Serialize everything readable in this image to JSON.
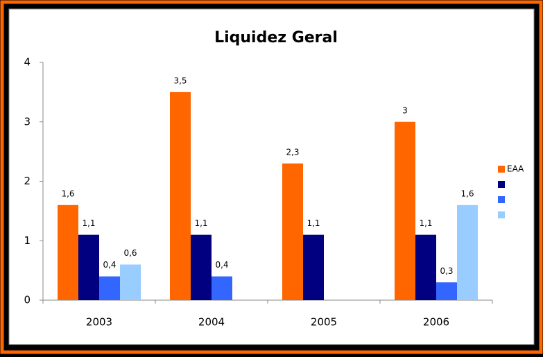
{
  "chart_data": {
    "type": "bar",
    "title": "Liquidez Geral",
    "categories": [
      "2003",
      "2004",
      "2005",
      "2006"
    ],
    "series": [
      {
        "name": "EAA",
        "color": "#ff6600",
        "values": [
          1.6,
          3.5,
          2.3,
          3
        ],
        "value_labels": [
          "1,6",
          "3,5",
          "2,3",
          "3"
        ]
      },
      {
        "color": "#000080",
        "values": [
          1.1,
          1.1,
          1.1,
          1.1
        ],
        "value_labels": [
          "1,1",
          "1,1",
          "1,1",
          "1,1"
        ]
      },
      {
        "color": "#3366ff",
        "values": [
          0.4,
          0.4,
          null,
          0.3
        ],
        "value_labels": [
          "0,4",
          "0,4",
          null,
          "0,3"
        ]
      },
      {
        "color": "#99ccff",
        "values": [
          0.6,
          null,
          null,
          1.6
        ],
        "value_labels": [
          "0,6",
          null,
          null,
          "1,6"
        ]
      }
    ],
    "ylim": [
      0,
      4
    ],
    "yticks": [
      0,
      1,
      2,
      3,
      4
    ],
    "grid": false,
    "legend": "right"
  }
}
